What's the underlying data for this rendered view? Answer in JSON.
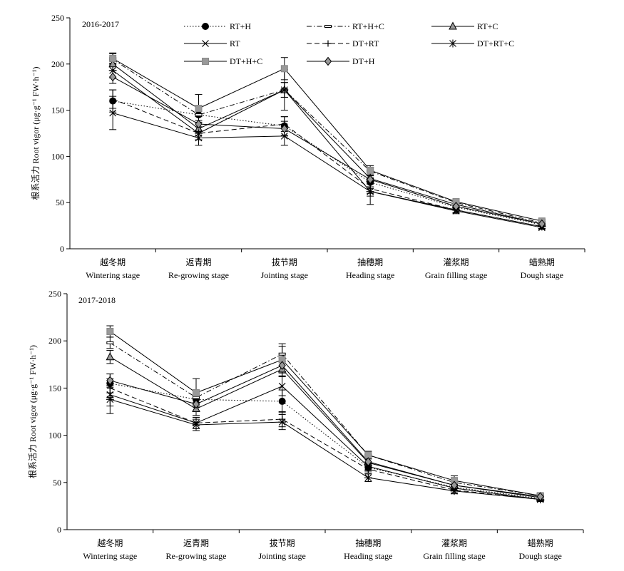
{
  "chart_data": [
    {
      "type": "line",
      "title": "2016-2017",
      "ylabel": "根系活力 Root vigor (μg·g⁻¹ FW·h⁻¹)",
      "ylim": [
        0,
        250
      ],
      "yticks": [
        "0",
        "50",
        "100",
        "150",
        "200",
        "250"
      ],
      "categories_cn": [
        "越冬期",
        "返青期",
        "拔节期",
        "抽穗期",
        "灌浆期",
        "蜡熟期"
      ],
      "categories_en": [
        "Wintering stage",
        "Re-growing stage",
        "Jointing stage",
        "Heading stage",
        "Grain filling stage",
        "Dough stage"
      ],
      "legend_position": "top-right",
      "series": [
        {
          "name": "RT+H",
          "marker": "circle",
          "dash": "dotted",
          "color": "#000000",
          "values": [
            160,
            145,
            133,
            72,
            45,
            26
          ],
          "errors": [
            12,
            8,
            10,
            5,
            3,
            2
          ]
        },
        {
          "name": "RT+H+C",
          "marker": "bar",
          "dash": "dash-dot",
          "color": "#000000",
          "values": [
            205,
            145,
            172,
            84,
            50,
            28
          ],
          "errors": [
            6,
            6,
            8,
            4,
            3,
            2
          ]
        },
        {
          "name": "RT+C",
          "marker": "triangle",
          "dash": "solid",
          "color": "#000000",
          "values": [
            200,
            130,
            172,
            76,
            48,
            27
          ],
          "errors": [
            7,
            7,
            8,
            4,
            3,
            2
          ]
        },
        {
          "name": "RT",
          "marker": "x",
          "dash": "solid",
          "color": "#000000",
          "values": [
            147,
            120,
            122,
            62,
            41,
            23
          ],
          "errors": [
            18,
            8,
            10,
            14,
            3,
            2
          ]
        },
        {
          "name": "DT+RT",
          "marker": "plus",
          "dash": "dashed",
          "color": "#000000",
          "values": [
            162,
            125,
            135,
            65,
            42,
            24
          ],
          "errors": [
            10,
            7,
            8,
            5,
            3,
            2
          ]
        },
        {
          "name": "DT+RT+C",
          "marker": "star",
          "dash": "solid",
          "color": "#000000",
          "values": [
            193,
            125,
            172,
            62,
            42,
            24
          ],
          "errors": [
            8,
            7,
            22,
            5,
            3,
            2
          ]
        },
        {
          "name": "DT+H+C",
          "marker": "square",
          "dash": "solid",
          "color": "#000000",
          "fill": "#999999",
          "values": [
            206,
            152,
            195,
            85,
            51,
            30
          ],
          "errors": [
            6,
            15,
            12,
            5,
            3,
            2
          ]
        },
        {
          "name": "DT+H",
          "marker": "diamond",
          "dash": "solid",
          "color": "#000000",
          "fill": "#999999",
          "values": [
            186,
            135,
            130,
            75,
            46,
            27
          ],
          "errors": [
            7,
            8,
            8,
            4,
            3,
            2
          ]
        }
      ]
    },
    {
      "type": "line",
      "title": "2017-2018",
      "ylabel": "根系活力 Root vigor (μg·g⁻¹ FW·h⁻¹)",
      "ylim": [
        0,
        250
      ],
      "yticks": [
        "0",
        "50",
        "100",
        "150",
        "200",
        "250"
      ],
      "categories_cn": [
        "越冬期",
        "返青期",
        "拔节期",
        "抽穗期",
        "灌浆期",
        "蜡熟期"
      ],
      "categories_en": [
        "Wintering stage",
        "Re-growing stage",
        "Jointing stage",
        "Heading stage",
        "Grain filling stage",
        "Dough stage"
      ],
      "legend_position": "none",
      "series": [
        {
          "name": "RT+H",
          "marker": "circle",
          "dash": "dotted",
          "color": "#000000",
          "values": [
            155,
            138,
            136,
            66,
            45,
            33
          ],
          "errors": [
            10,
            8,
            12,
            4,
            3,
            2
          ]
        },
        {
          "name": "RT+H+C",
          "marker": "bar",
          "dash": "dash-dot",
          "color": "#000000",
          "values": [
            198,
            140,
            186,
            79,
            50,
            36
          ],
          "errors": [
            6,
            8,
            8,
            4,
            3,
            2
          ]
        },
        {
          "name": "RT+C",
          "marker": "triangle",
          "dash": "solid",
          "color": "#000000",
          "values": [
            183,
            128,
            170,
            71,
            47,
            34
          ],
          "errors": [
            7,
            7,
            8,
            4,
            3,
            2
          ]
        },
        {
          "name": "RT",
          "marker": "x",
          "dash": "solid",
          "color": "#000000",
          "values": [
            143,
            113,
            152,
            67,
            44,
            32
          ],
          "errors": [
            12,
            6,
            10,
            4,
            3,
            2
          ]
        },
        {
          "name": "DT+RT",
          "marker": "plus",
          "dash": "dashed",
          "color": "#000000",
          "values": [
            150,
            113,
            117,
            64,
            42,
            32
          ],
          "errors": [
            10,
            6,
            8,
            4,
            3,
            2
          ]
        },
        {
          "name": "DT+RT+C",
          "marker": "star",
          "dash": "solid",
          "color": "#000000",
          "values": [
            138,
            111,
            114,
            55,
            41,
            32
          ],
          "errors": [
            15,
            6,
            8,
            4,
            3,
            2
          ]
        },
        {
          "name": "DT+H+C",
          "marker": "square",
          "dash": "solid",
          "color": "#000000",
          "fill": "#999999",
          "values": [
            210,
            145,
            180,
            79,
            52,
            36
          ],
          "errors": [
            6,
            15,
            17,
            4,
            5,
            2
          ]
        },
        {
          "name": "DT+H",
          "marker": "diamond",
          "dash": "solid",
          "color": "#000000",
          "fill": "#999999",
          "values": [
            158,
            133,
            174,
            72,
            47,
            35
          ],
          "errors": [
            7,
            7,
            8,
            4,
            3,
            2
          ]
        }
      ]
    }
  ]
}
